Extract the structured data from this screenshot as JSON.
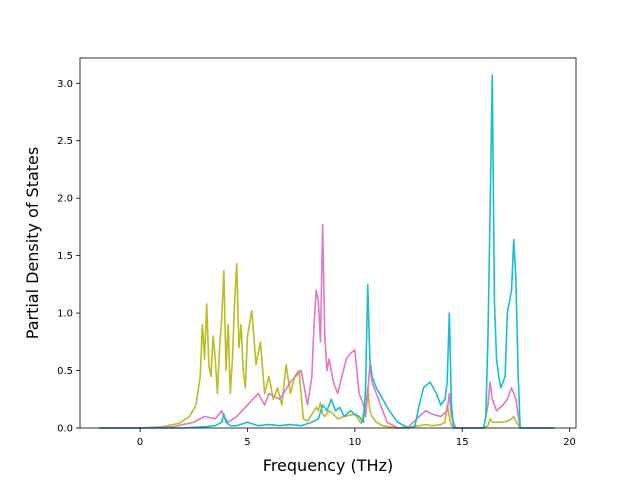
{
  "chart_data": {
    "type": "line",
    "title": "",
    "xlabel": "Frequency (THz)",
    "ylabel": "Partial Density of States",
    "xlim": [
      -2.8,
      20.3
    ],
    "ylim": [
      0,
      3.22
    ],
    "xticks": [
      0,
      5,
      10,
      15,
      20
    ],
    "xtick_labels": [
      "0",
      "5",
      "10",
      "15",
      "20"
    ],
    "yticks": [
      0,
      0.5,
      1.0,
      1.5,
      2.0,
      2.5,
      3.0
    ],
    "ytick_labels": [
      "0.0",
      "0.5",
      "1.0",
      "1.5",
      "2.0",
      "2.5",
      "3.0"
    ],
    "grid": false,
    "legend": "none",
    "series": [
      {
        "color": "#bcbd22",
        "x": [
          -1.9,
          0.0,
          1.0,
          1.8,
          2.3,
          2.6,
          2.8,
          2.9,
          3.0,
          3.1,
          3.2,
          3.3,
          3.4,
          3.5,
          3.6,
          3.7,
          3.8,
          3.9,
          4.0,
          4.1,
          4.2,
          4.3,
          4.4,
          4.5,
          4.6,
          4.7,
          4.8,
          4.9,
          5.0,
          5.2,
          5.4,
          5.6,
          5.8,
          6.0,
          6.2,
          6.4,
          6.6,
          6.8,
          7.0,
          7.2,
          7.4,
          7.6,
          7.8,
          8.0,
          8.2,
          8.3,
          8.4,
          8.5,
          8.6,
          8.8,
          9.0,
          9.2,
          9.5,
          10.0,
          10.3,
          10.5,
          10.6,
          10.7,
          10.8,
          11.0,
          11.3,
          11.6,
          12.0,
          12.5,
          13.0,
          13.3,
          13.6,
          14.0,
          14.2,
          14.3,
          14.4,
          14.5,
          14.7,
          15.5,
          16.0,
          16.2,
          16.3,
          16.4,
          16.6,
          16.9,
          17.1,
          17.3,
          17.4,
          17.5,
          17.7,
          18.5,
          19.3
        ],
        "y": [
          0,
          0,
          0.01,
          0.04,
          0.1,
          0.2,
          0.45,
          0.9,
          0.6,
          1.08,
          0.55,
          0.45,
          0.8,
          0.6,
          0.3,
          0.7,
          0.95,
          1.37,
          0.5,
          0.9,
          0.3,
          0.6,
          1.1,
          1.43,
          0.7,
          0.9,
          0.5,
          0.35,
          0.8,
          1.02,
          0.55,
          0.75,
          0.3,
          0.45,
          0.25,
          0.35,
          0.2,
          0.55,
          0.3,
          0.45,
          0.5,
          0.08,
          0.06,
          0.12,
          0.18,
          0.15,
          0.22,
          0.12,
          0.1,
          0.15,
          0.12,
          0.08,
          0.1,
          0.12,
          0.04,
          0.2,
          0.35,
          0.15,
          0.1,
          0.05,
          0.02,
          0.01,
          0,
          0,
          0.02,
          0.03,
          0.02,
          0.03,
          0.05,
          0.2,
          0.1,
          0.02,
          0,
          0,
          0,
          0.02,
          0.08,
          0.05,
          0.05,
          0.05,
          0.06,
          0.08,
          0.1,
          0.06,
          0,
          0,
          0
        ]
      },
      {
        "color": "#e377c2",
        "x": [
          -1.9,
          0.0,
          1.5,
          2.5,
          3.0,
          3.5,
          3.8,
          3.9,
          4.1,
          4.5,
          5.0,
          5.5,
          5.8,
          6.0,
          6.5,
          7.0,
          7.5,
          7.8,
          8.0,
          8.1,
          8.2,
          8.3,
          8.4,
          8.5,
          8.6,
          8.7,
          8.8,
          9.0,
          9.2,
          9.4,
          9.6,
          9.8,
          10.0,
          10.2,
          10.4,
          10.5,
          10.6,
          10.7,
          10.8,
          11.0,
          11.5,
          12.0,
          12.5,
          13.0,
          13.3,
          13.6,
          14.0,
          14.3,
          14.4,
          14.5,
          14.7,
          15.5,
          16.0,
          16.2,
          16.3,
          16.4,
          16.6,
          16.9,
          17.1,
          17.3,
          17.4,
          17.5,
          17.7,
          18.5,
          19.3
        ],
        "y": [
          0,
          0,
          0.01,
          0.05,
          0.1,
          0.08,
          0.15,
          0.1,
          0.05,
          0.1,
          0.2,
          0.3,
          0.2,
          0.3,
          0.25,
          0.4,
          0.5,
          0.2,
          0.45,
          0.9,
          1.2,
          1.1,
          0.75,
          1.77,
          0.8,
          0.5,
          0.6,
          0.4,
          0.3,
          0.45,
          0.6,
          0.65,
          0.68,
          0.3,
          0.2,
          0.1,
          0.3,
          0.55,
          0.4,
          0.3,
          0.05,
          0,
          0.01,
          0.1,
          0.15,
          0.12,
          0.1,
          0.15,
          0.3,
          0.1,
          0,
          0,
          0,
          0.2,
          0.4,
          0.25,
          0.15,
          0.2,
          0.25,
          0.35,
          0.3,
          0.25,
          0,
          0,
          0
        ]
      },
      {
        "color": "#17becf",
        "x": [
          -1.9,
          0.0,
          2.0,
          3.0,
          3.5,
          3.8,
          3.9,
          4.0,
          4.2,
          4.5,
          5.0,
          5.5,
          6.0,
          6.5,
          7.0,
          7.5,
          8.0,
          8.3,
          8.5,
          8.7,
          8.9,
          9.1,
          9.3,
          9.5,
          9.8,
          10.0,
          10.2,
          10.4,
          10.5,
          10.6,
          10.7,
          10.8,
          11.0,
          11.3,
          11.6,
          12.0,
          12.5,
          12.8,
          13.0,
          13.2,
          13.5,
          13.8,
          14.0,
          14.2,
          14.3,
          14.4,
          14.5,
          14.6,
          15.0,
          15.5,
          16.0,
          16.1,
          16.2,
          16.3,
          16.4,
          16.5,
          16.6,
          16.7,
          16.8,
          17.0,
          17.1,
          17.2,
          17.3,
          17.4,
          17.5,
          17.6,
          17.7,
          18.5,
          19.3
        ],
        "y": [
          0,
          0,
          0,
          0.01,
          0.02,
          0.05,
          0.12,
          0.05,
          0.02,
          0.02,
          0.05,
          0.02,
          0.03,
          0.02,
          0.03,
          0.02,
          0.05,
          0.08,
          0.2,
          0.15,
          0.25,
          0.15,
          0.18,
          0.1,
          0.15,
          0.12,
          0.1,
          0.05,
          0.35,
          1.25,
          0.6,
          0.45,
          0.35,
          0.25,
          0.15,
          0.05,
          0,
          0.02,
          0.2,
          0.35,
          0.4,
          0.3,
          0.2,
          0.25,
          0.4,
          1.0,
          0.2,
          0,
          0,
          0,
          0,
          0.1,
          0.8,
          1.9,
          3.07,
          1.1,
          0.6,
          0.45,
          0.35,
          0.45,
          1.0,
          1.1,
          1.2,
          1.64,
          1.3,
          0.5,
          0,
          0,
          0
        ]
      }
    ]
  }
}
